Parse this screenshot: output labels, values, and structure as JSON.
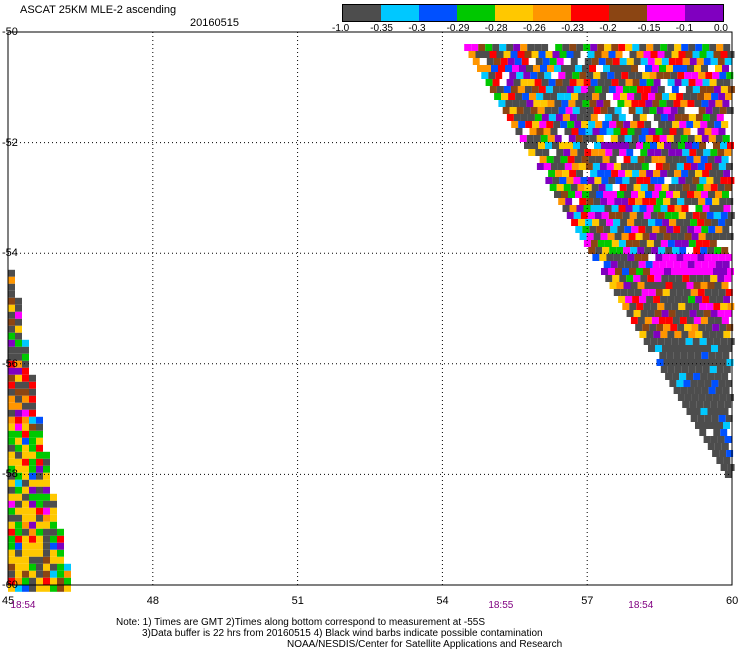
{
  "header": {
    "title": "ASCAT 25KM MLE-2 ascending",
    "date": "20160515"
  },
  "legend": {
    "colors": [
      "#4d4d4d",
      "#00c8ff",
      "#0050ff",
      "#00c800",
      "#ffc800",
      "#ff9600",
      "#ff0000",
      "#8b4513",
      "#ff00ff",
      "#8000c0"
    ],
    "labels": [
      "-1.0",
      "-0.35",
      "-0.3",
      "-0.29",
      "-0.28",
      "-0.26",
      "-0.23",
      "-0.2",
      "-0.15",
      "-0.1",
      "0.0"
    ]
  },
  "axes": {
    "x_ticks": [
      "45",
      "48",
      "51",
      "54",
      "57",
      "60"
    ],
    "y_ticks": [
      "-50",
      "-52",
      "-54",
      "-56",
      "-58",
      "-60"
    ],
    "xlim": [
      45,
      60
    ],
    "ylim": [
      -60,
      -50
    ]
  },
  "times": [
    {
      "label": "18:54",
      "lon": 45.3
    },
    {
      "label": "18:55",
      "lon": 55.2
    },
    {
      "label": "18:54",
      "lon": 58.1
    }
  ],
  "notes": {
    "line1": "Note: 1) Times are GMT 2)Times along bottom correspond to measurement at -55S",
    "line2": "3)Data buffer is 22 hrs from 20160515 4) Black wind barbs indicate possible contamination",
    "line3": "NOAA/NESDIS/Center for Satellite Applications and Research"
  }
}
